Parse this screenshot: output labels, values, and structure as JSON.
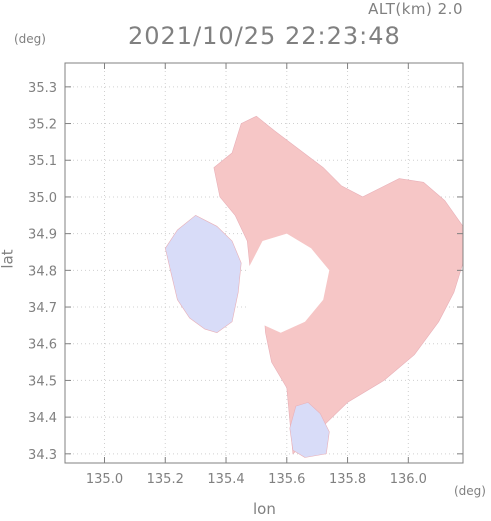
{
  "chart_data": {
    "type": "heatmap",
    "title": "2021/10/25 22:23:48",
    "subtitle": "ALT(km) 2.0",
    "xlabel": "lon",
    "ylabel": "lat",
    "x_unit": "(deg)",
    "y_unit": "(deg)",
    "xlim": [
      134.87,
      136.18
    ],
    "ylim": [
      34.275,
      35.365
    ],
    "x_ticks": [
      "135.0",
      "135.2",
      "135.4",
      "135.6",
      "135.8",
      "136.0"
    ],
    "x_tick_values": [
      135.0,
      135.2,
      135.4,
      135.6,
      135.8,
      136.0
    ],
    "y_ticks": [
      "34.3",
      "34.4",
      "34.5",
      "34.6",
      "34.7",
      "34.8",
      "34.9",
      "35.0",
      "35.1",
      "35.2",
      "35.3"
    ],
    "y_tick_values": [
      34.3,
      34.4,
      34.5,
      34.6,
      34.7,
      34.8,
      34.9,
      35.0,
      35.1,
      35.2,
      35.3
    ],
    "grid": true,
    "regions": [
      {
        "name": "positive",
        "color": "#f6c6c6",
        "points": [
          [
            135.62,
            34.3
          ],
          [
            135.7,
            34.36
          ],
          [
            135.8,
            34.44
          ],
          [
            135.92,
            34.5
          ],
          [
            136.02,
            34.57
          ],
          [
            136.1,
            34.66
          ],
          [
            136.15,
            34.74
          ],
          [
            136.18,
            34.82
          ],
          [
            136.18,
            34.92
          ],
          [
            136.12,
            34.99
          ],
          [
            136.05,
            35.04
          ],
          [
            135.97,
            35.05
          ],
          [
            135.85,
            35.0
          ],
          [
            135.78,
            35.03
          ],
          [
            135.72,
            35.08
          ],
          [
            135.64,
            35.13
          ],
          [
            135.56,
            35.18
          ],
          [
            135.5,
            35.22
          ],
          [
            135.45,
            35.2
          ],
          [
            135.42,
            35.12
          ],
          [
            135.36,
            35.08
          ],
          [
            135.38,
            35.0
          ],
          [
            135.43,
            34.95
          ],
          [
            135.47,
            34.88
          ],
          [
            135.48,
            34.8
          ],
          [
            135.52,
            34.74
          ],
          [
            135.53,
            34.63
          ],
          [
            135.55,
            34.55
          ],
          [
            135.6,
            34.48
          ]
        ]
      },
      {
        "name": "negative",
        "color": "#d8dcf8",
        "points": [
          [
            135.37,
            34.63
          ],
          [
            135.42,
            34.66
          ],
          [
            135.44,
            34.74
          ],
          [
            135.45,
            34.82
          ],
          [
            135.42,
            34.88
          ],
          [
            135.37,
            34.92
          ],
          [
            135.3,
            34.95
          ],
          [
            135.24,
            34.91
          ],
          [
            135.2,
            34.86
          ],
          [
            135.22,
            34.79
          ],
          [
            135.24,
            34.72
          ],
          [
            135.28,
            34.67
          ],
          [
            135.33,
            34.64
          ]
        ]
      },
      {
        "name": "negative-south",
        "color": "#d8dcf8",
        "points": [
          [
            135.66,
            34.29
          ],
          [
            135.73,
            34.3
          ],
          [
            135.74,
            34.36
          ],
          [
            135.71,
            34.41
          ],
          [
            135.67,
            34.44
          ],
          [
            135.63,
            34.43
          ],
          [
            135.61,
            34.37
          ],
          [
            135.62,
            34.31
          ]
        ]
      },
      {
        "name": "no-echo",
        "color": "#ffffff",
        "points": [
          [
            135.5,
            34.66
          ],
          [
            135.58,
            34.63
          ],
          [
            135.66,
            34.66
          ],
          [
            135.72,
            34.72
          ],
          [
            135.74,
            34.8
          ],
          [
            135.68,
            34.86
          ],
          [
            135.6,
            34.9
          ],
          [
            135.52,
            34.88
          ],
          [
            135.47,
            34.8
          ],
          [
            135.46,
            34.72
          ]
        ]
      }
    ]
  }
}
